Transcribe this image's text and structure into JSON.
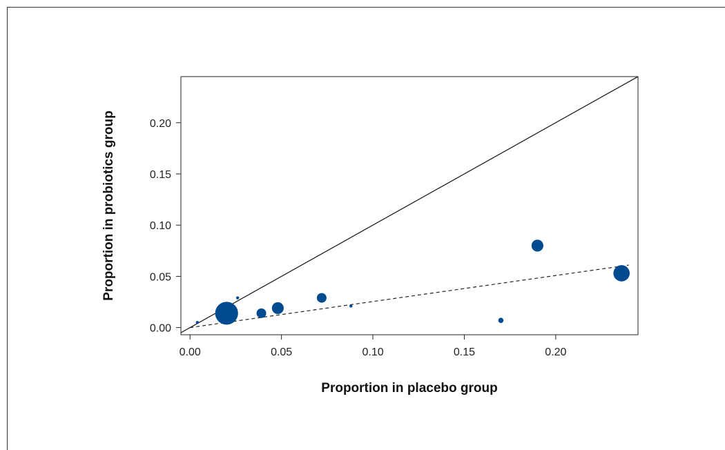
{
  "chart_data": {
    "type": "scatter",
    "xlabel": "Proportion in placebo group",
    "ylabel": "Proportion in probiotics group",
    "xlim": [
      -0.005,
      0.245
    ],
    "ylim": [
      -0.007,
      0.245
    ],
    "x_ticks": [
      "0.00",
      "0.05",
      "0.10",
      "0.15",
      "0.20"
    ],
    "y_ticks": [
      "0.00",
      "0.05",
      "0.10",
      "0.15",
      "0.20"
    ],
    "grid": false,
    "reference_lines": [
      {
        "style": "solid",
        "points": [
          [
            -0.005,
            -0.005
          ],
          [
            0.245,
            0.245
          ]
        ]
      },
      {
        "style": "dashed",
        "points": [
          [
            0.0,
            0.0
          ],
          [
            0.24,
            0.061
          ]
        ]
      }
    ],
    "marker_color": "#004a8f",
    "points": [
      {
        "x": 0.004,
        "y": 0.005,
        "size": 1
      },
      {
        "x": 0.02,
        "y": 0.014,
        "size": 10
      },
      {
        "x": 0.026,
        "y": 0.029,
        "size": 1
      },
      {
        "x": 0.039,
        "y": 0.014,
        "size": 4
      },
      {
        "x": 0.048,
        "y": 0.019,
        "size": 5
      },
      {
        "x": 0.072,
        "y": 0.029,
        "size": 4
      },
      {
        "x": 0.088,
        "y": 0.021,
        "size": 1
      },
      {
        "x": 0.17,
        "y": 0.007,
        "size": 2
      },
      {
        "x": 0.19,
        "y": 0.08,
        "size": 5
      },
      {
        "x": 0.236,
        "y": 0.053,
        "size": 7
      }
    ]
  }
}
